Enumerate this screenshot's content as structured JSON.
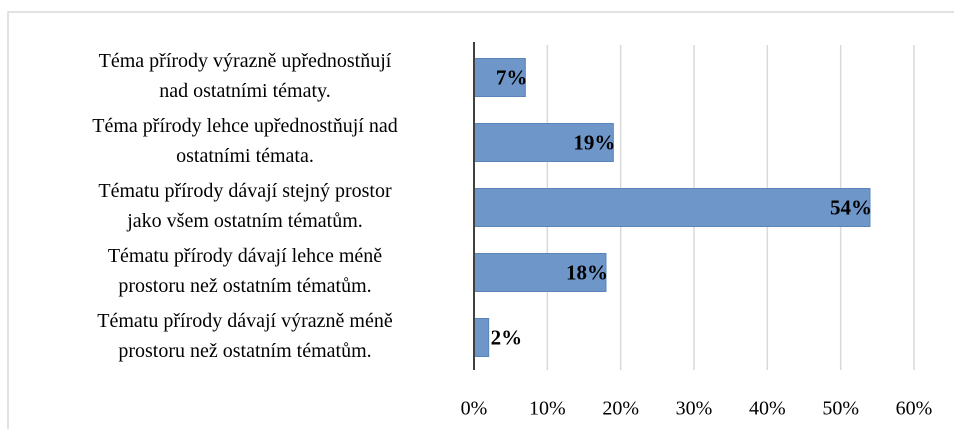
{
  "chart_data": {
    "type": "bar",
    "orientation": "horizontal",
    "categories": [
      [
        "Téma přírody výrazně upřednostňují",
        "nad ostatními tématy."
      ],
      [
        "Téma přírody lehce upřednostňují nad",
        "ostatními témata."
      ],
      [
        "Tématu přírody dávají stejný prostor",
        "jako všem ostatním tématům."
      ],
      [
        "Tématu přírody dávají lehce méně",
        "prostoru než ostatním tématům."
      ],
      [
        "Tématu přírody dávají výrazně méně",
        "prostoru než ostatním tématům."
      ]
    ],
    "values": [
      7,
      19,
      54,
      18,
      2
    ],
    "value_labels": [
      "7%",
      "19%",
      "54%",
      "18%",
      "2%"
    ],
    "color": "#6f96c8",
    "xlim": [
      0,
      60
    ],
    "xticks": [
      {
        "value": 0,
        "label": "0%"
      },
      {
        "value": 10,
        "label": "10%"
      },
      {
        "value": 20,
        "label": "20%"
      },
      {
        "value": 30,
        "label": "30%"
      },
      {
        "value": 40,
        "label": "40%"
      },
      {
        "value": 50,
        "label": "50%"
      },
      {
        "value": 60,
        "label": "60%"
      }
    ],
    "grid": true
  }
}
